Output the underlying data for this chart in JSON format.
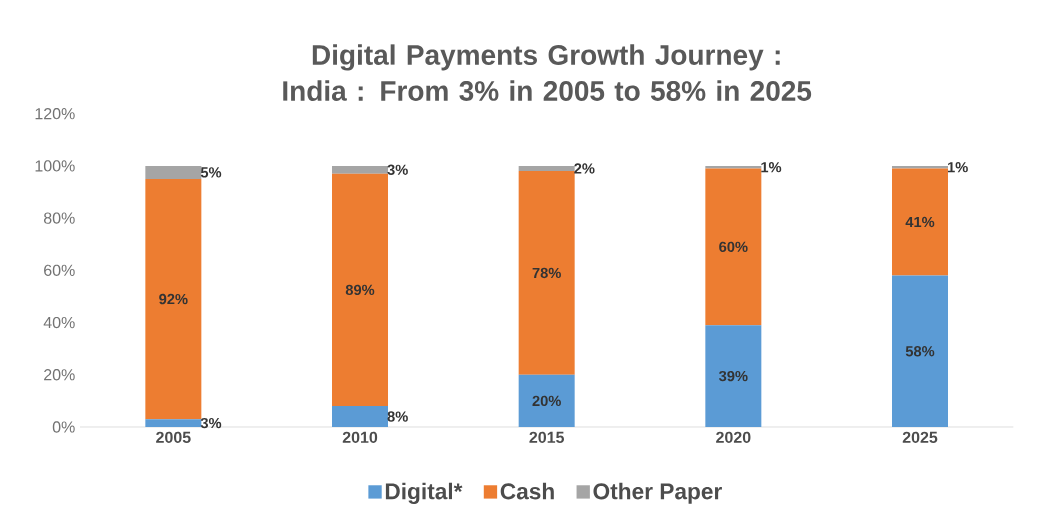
{
  "chart_data": {
    "type": "bar",
    "stacked": true,
    "title": "Digital Payments Growth Journey : India : From 3% in 2005 to 58% in 2025",
    "categories": [
      "2005",
      "2010",
      "2015",
      "2020",
      "2025"
    ],
    "series": [
      {
        "name": "Digital*",
        "color": "#5b9bd5",
        "values": [
          3,
          8,
          20,
          39,
          58
        ],
        "value_labels": [
          "3%",
          "8%",
          "20%",
          "39%",
          "58%"
        ]
      },
      {
        "name": "Cash",
        "color": "#ed7d31",
        "values": [
          92,
          89,
          78,
          60,
          41
        ],
        "value_labels": [
          "92%",
          "89%",
          "78%",
          "60%",
          "41%"
        ]
      },
      {
        "name": "Other Paper",
        "color": "#a5a5a5",
        "values": [
          5,
          3,
          2,
          1,
          1
        ],
        "value_labels": [
          "5%",
          "3%",
          "2%",
          "1%",
          "1%"
        ]
      }
    ],
    "ylim": [
      0,
      120
    ],
    "yticks": [
      {
        "value": 0,
        "label": "0%"
      },
      {
        "value": 20,
        "label": "20%"
      },
      {
        "value": 40,
        "label": "40%"
      },
      {
        "value": 60,
        "label": "60%"
      },
      {
        "value": 80,
        "label": "80%"
      },
      {
        "value": 100,
        "label": "100%"
      },
      {
        "value": 120,
        "label": "120%"
      }
    ],
    "legend": "bottom",
    "grid": false
  }
}
